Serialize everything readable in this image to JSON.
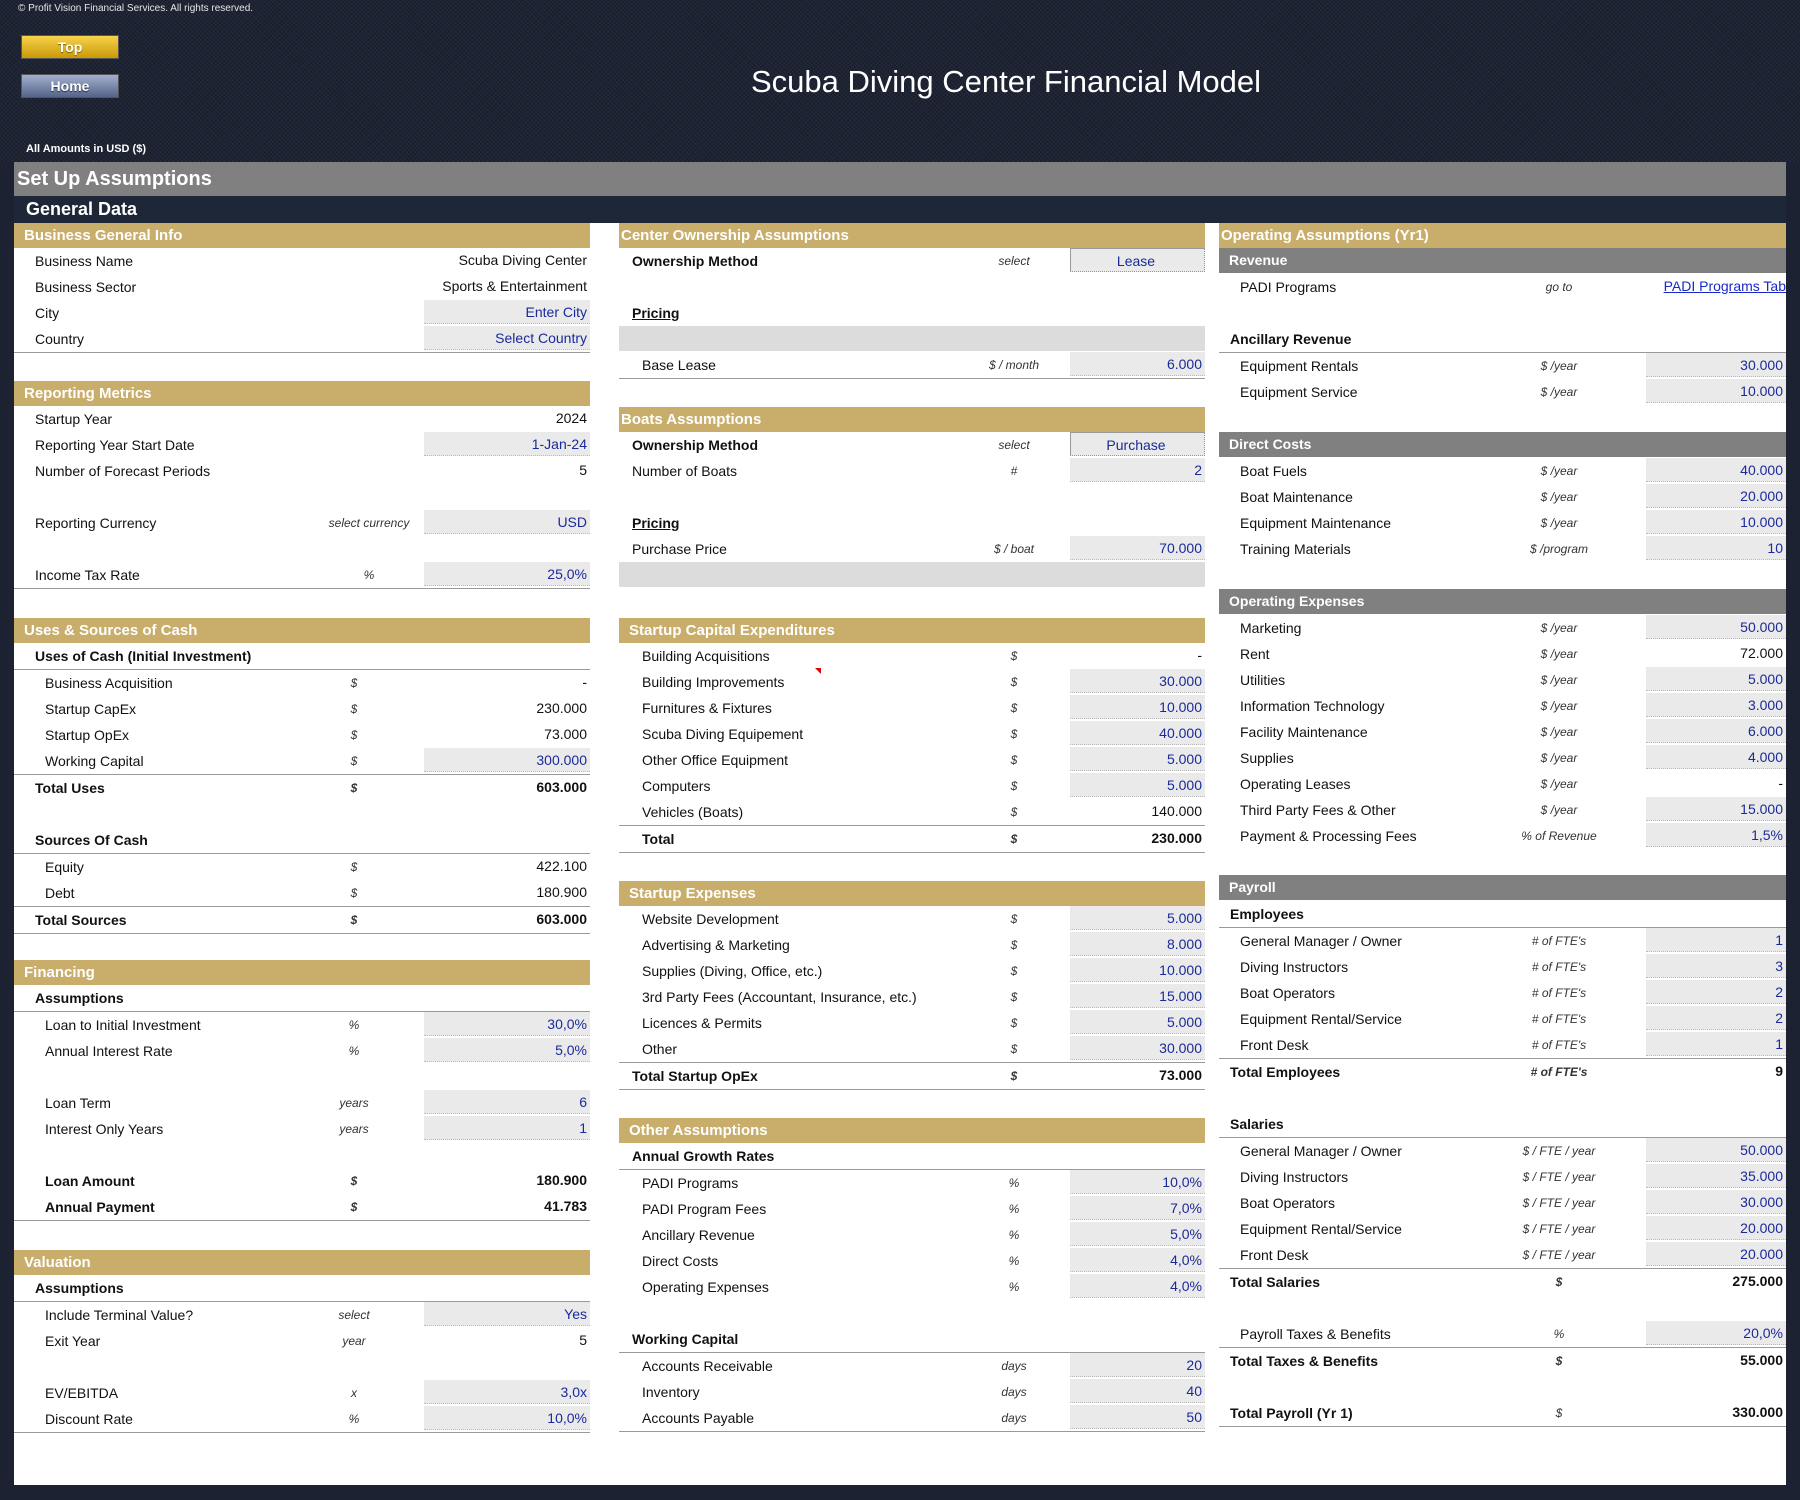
{
  "header": {
    "copyright": "© Profit Vision Financial Services. All rights reserved.",
    "top_button": "Top",
    "home_button": "Home",
    "title": "Scuba Diving Center Financial Model",
    "amounts_note": "All Amounts in  USD ($)"
  },
  "bars": {
    "setup": "Set Up Assumptions",
    "general": "General Data"
  },
  "business": {
    "title": "Business General Info",
    "rows": [
      {
        "label": "Business Name",
        "value": "Scuba Diving Center"
      },
      {
        "label": "Business Sector",
        "value": "Sports & Entertainment"
      },
      {
        "label": "City",
        "value": "Enter City"
      },
      {
        "label": "Country",
        "value": "Select Country"
      }
    ]
  },
  "reporting": {
    "title": "Reporting Metrics",
    "rows": [
      {
        "label": "Startup Year",
        "unit": "",
        "value": "2024"
      },
      {
        "label": "Reporting Year Start Date",
        "unit": "",
        "value": "1-Jan-24"
      },
      {
        "label": "Number of Forecast Periods",
        "unit": "",
        "value": "5"
      },
      {
        "label": "Reporting Currency",
        "unit": "select currency",
        "value": "USD"
      },
      {
        "label": "Income Tax Rate",
        "unit": "%",
        "value": "25,0%"
      }
    ]
  },
  "uses_sources": {
    "title": "Uses & Sources of Cash",
    "uses_head": "Uses of Cash (Initial Investment)",
    "uses": [
      {
        "label": "Business Acquisition",
        "unit": "$",
        "value": "-"
      },
      {
        "label": "Startup CapEx",
        "unit": "$",
        "value": "230.000"
      },
      {
        "label": "Startup OpEx",
        "unit": "$",
        "value": "73.000"
      },
      {
        "label": "Working Capital",
        "unit": "$",
        "value": "300.000"
      }
    ],
    "total_uses": {
      "label": "Total Uses",
      "unit": "$",
      "value": "603.000"
    },
    "sources_head": "Sources Of Cash",
    "sources": [
      {
        "label": "Equity",
        "unit": "$",
        "value": "422.100"
      },
      {
        "label": "Debt",
        "unit": "$",
        "value": "180.900"
      }
    ],
    "total_sources": {
      "label": "Total Sources",
      "unit": "$",
      "value": "603.000"
    }
  },
  "financing": {
    "title": "Financing",
    "assumptions_head": "Assumptions",
    "rows": [
      {
        "label": "Loan to Initial Investment",
        "unit": "%",
        "value": "30,0%"
      },
      {
        "label": "Annual Interest Rate",
        "unit": "%",
        "value": "5,0%"
      },
      {
        "label": "Loan Term",
        "unit": "years",
        "value": "6"
      },
      {
        "label": "Interest Only Years",
        "unit": "years",
        "value": "1"
      },
      {
        "label": "Loan Amount",
        "unit": "$",
        "value": "180.900"
      },
      {
        "label": "Annual Payment",
        "unit": "$",
        "value": "41.783"
      }
    ]
  },
  "valuation": {
    "title": "Valuation",
    "assumptions_head": "Assumptions",
    "rows": [
      {
        "label": "Include Terminal Value?",
        "unit": "select",
        "value": "Yes"
      },
      {
        "label": "Exit Year",
        "unit": "year",
        "value": "5"
      },
      {
        "label": "EV/EBITDA",
        "unit": "x",
        "value": "3,0x"
      },
      {
        "label": "Discount Rate",
        "unit": "%",
        "value": "10,0%"
      }
    ]
  },
  "ownership": {
    "title": "Center Ownership Assumptions",
    "method_label": "Ownership Method",
    "method_unit": "select",
    "method_value": "Lease",
    "pricing": "Pricing",
    "base_lease": {
      "label": "Base Lease",
      "unit": "$ / month",
      "value": "6.000"
    }
  },
  "boats": {
    "title": "Boats Assumptions",
    "method_label": "Ownership Method",
    "method_unit": "select",
    "method_value": "Purchase",
    "count": {
      "label": "Number of Boats",
      "unit": "#",
      "value": "2"
    },
    "pricing": "Pricing",
    "price": {
      "label": "Purchase Price",
      "unit": "$ / boat",
      "value": "70.000"
    }
  },
  "capex": {
    "title": "Startup Capital Expenditures",
    "rows": [
      {
        "label": "Building Acquisitions",
        "unit": "$",
        "value": "-"
      },
      {
        "label": "Building Improvements",
        "unit": "$",
        "value": "30.000"
      },
      {
        "label": "Furnitures & Fixtures",
        "unit": "$",
        "value": "10.000"
      },
      {
        "label": "Scuba Diving Equipement",
        "unit": "$",
        "value": "40.000"
      },
      {
        "label": "Other Office Equipment",
        "unit": "$",
        "value": "5.000"
      },
      {
        "label": "Computers",
        "unit": "$",
        "value": "5.000"
      },
      {
        "label": "Vehicles (Boats)",
        "unit": "$",
        "value": "140.000"
      }
    ],
    "total": {
      "label": "Total",
      "unit": "$",
      "value": "230.000"
    }
  },
  "startup_expenses": {
    "title": "Startup Expenses",
    "rows": [
      {
        "label": "Website Development",
        "unit": "$",
        "value": "5.000"
      },
      {
        "label": "Advertising & Marketing",
        "unit": "$",
        "value": "8.000"
      },
      {
        "label": "Supplies (Diving, Office, etc.)",
        "unit": "$",
        "value": "10.000"
      },
      {
        "label": "3rd Party Fees (Accountant, Insurance, etc.)",
        "unit": "$",
        "value": "15.000"
      },
      {
        "label": "Licences & Permits",
        "unit": "$",
        "value": "5.000"
      },
      {
        "label": "Other",
        "unit": "$",
        "value": "30.000"
      }
    ],
    "total": {
      "label": "Total Startup OpEx",
      "unit": "$",
      "value": "73.000"
    }
  },
  "other": {
    "title": "Other Assumptions",
    "growth_head": "Annual Growth Rates",
    "growth": [
      {
        "label": "PADI Programs",
        "unit": "%",
        "value": "10,0%"
      },
      {
        "label": "PADI Program Fees",
        "unit": "%",
        "value": "7,0%"
      },
      {
        "label": "Ancillary Revenue",
        "unit": "%",
        "value": "5,0%"
      },
      {
        "label": "Direct Costs",
        "unit": "%",
        "value": "4,0%"
      },
      {
        "label": "Operating Expenses",
        "unit": "%",
        "value": "4,0%"
      }
    ],
    "wc_head": "Working Capital",
    "wc": [
      {
        "label": "Accounts Receivable",
        "unit": "days",
        "value": "20"
      },
      {
        "label": "Inventory",
        "unit": "days",
        "value": "40"
      },
      {
        "label": "Accounts Payable",
        "unit": "days",
        "value": "50"
      }
    ]
  },
  "operating": {
    "title": "Operating Assumptions (Yr1)",
    "revenue_head": "Revenue",
    "padi": {
      "label": "PADI Programs",
      "unit": "go to",
      "value": "PADI Programs Tab"
    },
    "ancillary_head": "Ancillary Revenue",
    "ancillary": [
      {
        "label": "Equipment Rentals",
        "unit": "$ /year",
        "value": "30.000"
      },
      {
        "label": "Equipment Service",
        "unit": "$ /year",
        "value": "10.000"
      }
    ],
    "direct_head": "Direct Costs",
    "direct": [
      {
        "label": "Boat Fuels",
        "unit": "$ /year",
        "value": "40.000"
      },
      {
        "label": "Boat Maintenance",
        "unit": "$ /year",
        "value": "20.000"
      },
      {
        "label": "Equipment Maintenance",
        "unit": "$ /year",
        "value": "10.000"
      },
      {
        "label": "Training Materials",
        "unit": "$ /program",
        "value": "10"
      }
    ],
    "opex_head": "Operating Expenses",
    "opex": [
      {
        "label": "Marketing",
        "unit": "$ /year",
        "value": "50.000"
      },
      {
        "label": "Rent",
        "unit": "$ /year",
        "value": "72.000"
      },
      {
        "label": "Utilities",
        "unit": "$ /year",
        "value": "5.000"
      },
      {
        "label": "Information Technology",
        "unit": "$ /year",
        "value": "3.000"
      },
      {
        "label": "Facility Maintenance",
        "unit": "$ /year",
        "value": "6.000"
      },
      {
        "label": "Supplies",
        "unit": "$ /year",
        "value": "4.000"
      },
      {
        "label": "Operating Leases",
        "unit": "$ /year",
        "value": "-"
      },
      {
        "label": "Third Party Fees & Other",
        "unit": "$ /year",
        "value": "15.000"
      },
      {
        "label": "Payment & Processing Fees",
        "unit": "% of Revenue",
        "value": "1,5%"
      }
    ],
    "payroll_head": "Payroll",
    "employees_head": "Employees",
    "employees": [
      {
        "label": "General Manager / Owner",
        "unit": "# of FTE's",
        "value": "1"
      },
      {
        "label": "Diving Instructors",
        "unit": "# of FTE's",
        "value": "3"
      },
      {
        "label": "Boat Operators",
        "unit": "# of FTE's",
        "value": "2"
      },
      {
        "label": "Equipment Rental/Service",
        "unit": "# of FTE's",
        "value": "2"
      },
      {
        "label": "Front Desk",
        "unit": "# of FTE's",
        "value": "1"
      }
    ],
    "total_employees": {
      "label": "Total Employees",
      "unit": "# of FTE's",
      "value": "9"
    },
    "salaries_head": "Salaries",
    "salaries": [
      {
        "label": "General Manager / Owner",
        "unit": "$ / FTE /  year",
        "value": "50.000"
      },
      {
        "label": "Diving Instructors",
        "unit": "$ / FTE /  year",
        "value": "35.000"
      },
      {
        "label": "Boat Operators",
        "unit": "$ / FTE /  year",
        "value": "30.000"
      },
      {
        "label": "Equipment Rental/Service",
        "unit": "$ / FTE /  year",
        "value": "20.000"
      },
      {
        "label": "Front Desk",
        "unit": "$ / FTE /  year",
        "value": "20.000"
      }
    ],
    "total_salaries": {
      "label": "Total Salaries",
      "unit": "$",
      "value": "275.000"
    },
    "taxes": {
      "label": "Payroll Taxes & Benefits",
      "unit": "%",
      "value": "20,0%"
    },
    "total_taxes": {
      "label": "Total Taxes & Benefits",
      "unit": "$",
      "value": "55.000"
    },
    "total_payroll": {
      "label": "Total Payroll (Yr 1)",
      "unit": "$",
      "value": "330.000"
    }
  }
}
